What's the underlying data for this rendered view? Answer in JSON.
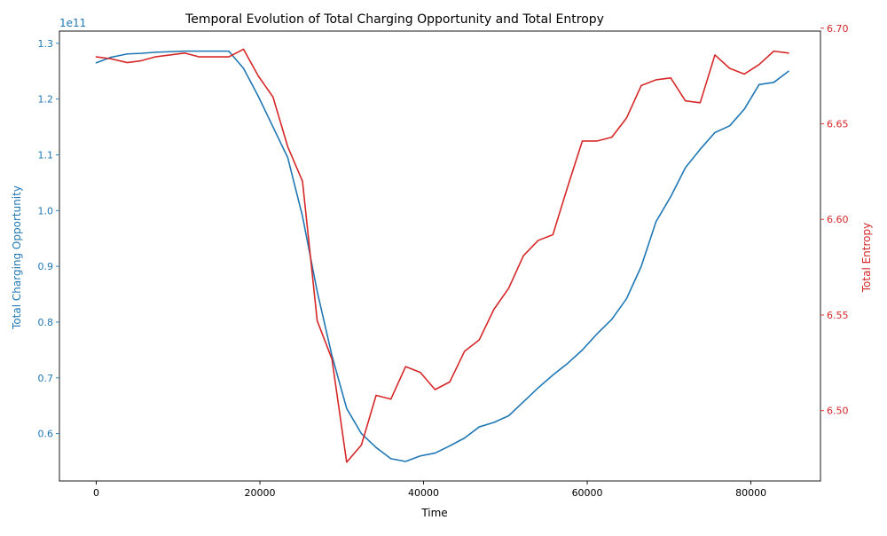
{
  "chart_data": {
    "type": "line",
    "title": "Temporal Evolution of Total Charging Opportunity and Total Entropy",
    "xlabel": "Time",
    "xlim": [
      -4500,
      88500
    ],
    "x_ticks": [
      0,
      20000,
      40000,
      60000,
      80000
    ],
    "x_tick_labels": [
      "0",
      "20000",
      "40000",
      "60000",
      "80000"
    ],
    "grid": false,
    "legend": "none",
    "y_left": {
      "label": "Total Charging Opportunity",
      "color": "#1f77b4",
      "offset_text": "1e11",
      "ylim": [
        0.515,
        1.322
      ],
      "ticks": [
        0.6,
        0.7,
        0.8,
        0.9,
        1.0,
        1.1,
        1.2,
        1.3
      ],
      "tick_labels": [
        "0.6",
        "0.7",
        "0.8",
        "0.9",
        "1.0",
        "1.1",
        "1.2",
        "1.3"
      ]
    },
    "y_right": {
      "label": "Total Entropy",
      "color": "#d62728",
      "ylim": [
        6.4632,
        6.6985
      ],
      "ticks": [
        6.5,
        6.55,
        6.6,
        6.65,
        6.7
      ],
      "tick_labels": [
        "6.50",
        "6.55",
        "6.60",
        "6.65",
        "6.70"
      ]
    },
    "series": [
      {
        "axis": "left",
        "color": "#1f77b4",
        "x": [
          0,
          1800,
          3800,
          5500,
          7200,
          9000,
          10800,
          12600,
          14400,
          16200,
          18000,
          19800,
          21600,
          23400,
          25200,
          27000,
          28800,
          30600,
          32400,
          34200,
          36000,
          37800,
          39600,
          41400,
          43200,
          45000,
          46800,
          48600,
          50400,
          52200,
          54000,
          55800,
          57600,
          59400,
          61200,
          63000,
          64800,
          66600,
          68400,
          70200,
          72000,
          73800,
          75600,
          77400,
          79200,
          81000,
          82800,
          84600
        ],
        "y": [
          1.265,
          1.275,
          1.281,
          1.282,
          1.284,
          1.285,
          1.286,
          1.286,
          1.286,
          1.286,
          1.255,
          1.205,
          1.15,
          1.095,
          0.99,
          0.855,
          0.74,
          0.645,
          0.6,
          0.575,
          0.555,
          0.55,
          0.56,
          0.565,
          0.578,
          0.592,
          0.612,
          0.62,
          0.632,
          0.657,
          0.682,
          0.705,
          0.726,
          0.75,
          0.779,
          0.805,
          0.842,
          0.9,
          0.98,
          1.025,
          1.077,
          1.11,
          1.14,
          1.152,
          1.182,
          1.226,
          1.23,
          1.25
        ]
      },
      {
        "axis": "right",
        "color": "#d62728",
        "x": [
          0,
          1800,
          3800,
          5500,
          7200,
          9000,
          10800,
          12600,
          14400,
          16200,
          18000,
          19800,
          21600,
          23400,
          25200,
          27000,
          28800,
          30600,
          32400,
          34200,
          36000,
          37800,
          39600,
          41400,
          43200,
          45000,
          46800,
          48600,
          50400,
          52200,
          54000,
          55800,
          57600,
          59400,
          61200,
          63000,
          64800,
          66600,
          68400,
          70200,
          72000,
          73800,
          75600,
          77400,
          79200,
          81000,
          82800,
          84600
        ],
        "y": [
          6.685,
          6.684,
          6.682,
          6.683,
          6.685,
          6.686,
          6.687,
          6.685,
          6.685,
          6.685,
          6.689,
          6.675,
          6.664,
          6.638,
          6.62,
          6.547,
          6.527,
          6.473,
          6.482,
          6.508,
          6.506,
          6.523,
          6.52,
          6.511,
          6.515,
          6.531,
          6.537,
          6.553,
          6.564,
          6.581,
          6.589,
          6.592,
          6.617,
          6.641,
          6.641,
          6.643,
          6.653,
          6.67,
          6.673,
          6.674,
          6.662,
          6.661,
          6.686,
          6.679,
          6.676,
          6.681,
          6.688,
          6.687
        ]
      }
    ]
  }
}
